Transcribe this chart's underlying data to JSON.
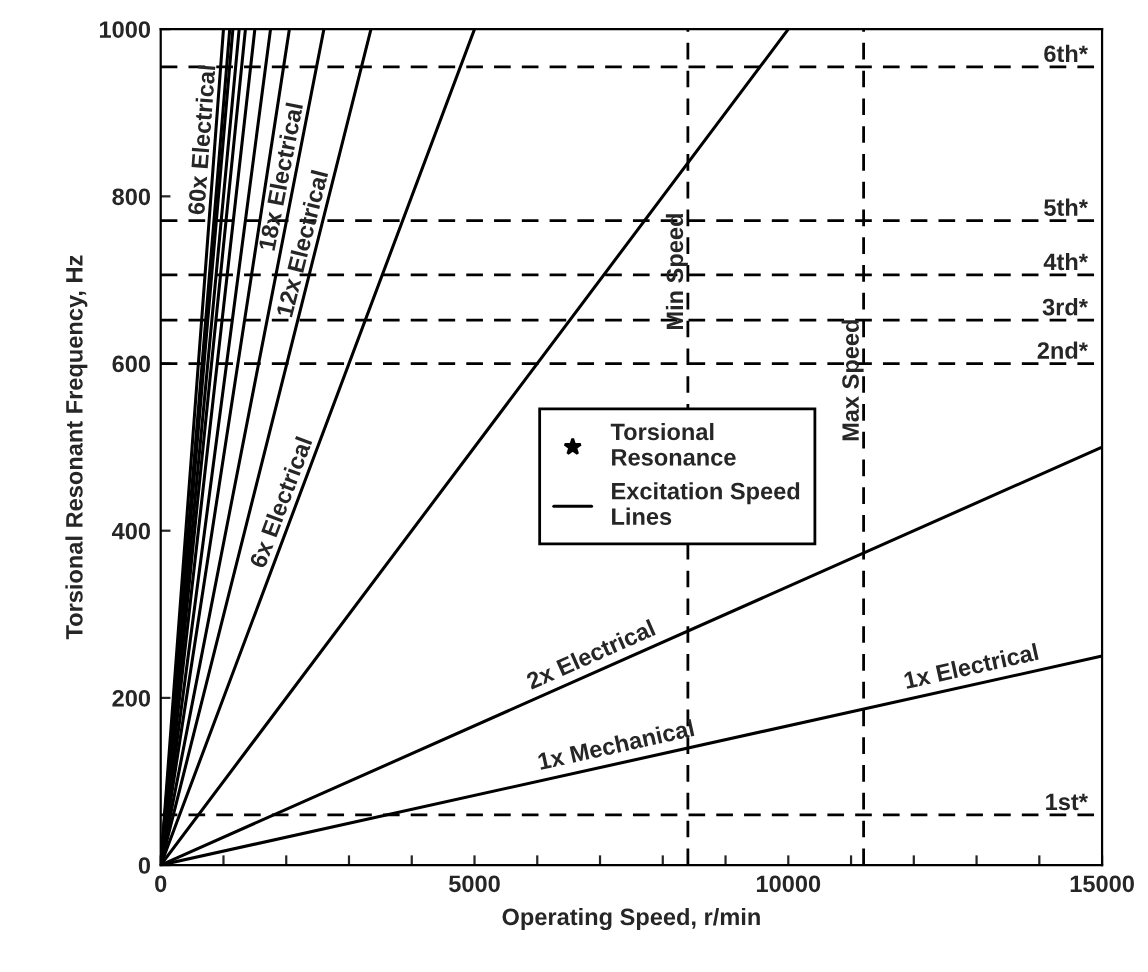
{
  "chart_data": {
    "type": "line",
    "xlabel": "Operating Speed, r/min",
    "ylabel": "Torsional Resonant Frequency, Hz",
    "xlim": [
      0,
      15000
    ],
    "ylim": [
      0,
      1000
    ],
    "xticks": [
      0,
      {
        "value": 1000,
        "label": null
      },
      {
        "value": 2000,
        "label": null
      },
      {
        "value": 3000,
        "label": null
      },
      {
        "value": 4000,
        "label": null
      },
      5000,
      {
        "value": 6000,
        "label": null
      },
      {
        "value": 7000,
        "label": null
      },
      {
        "value": 8000,
        "label": null
      },
      {
        "value": 9000,
        "label": null
      },
      10000,
      {
        "value": 11000,
        "label": null
      },
      {
        "value": 12000,
        "label": null
      },
      {
        "value": 13000,
        "label": null
      },
      {
        "value": 14000,
        "label": null
      },
      15000
    ],
    "yticks": [
      0,
      200,
      400,
      600,
      800,
      1000
    ],
    "grid": false,
    "legend": "right",
    "marker": "none",
    "line_style": "solid",
    "series": [
      {
        "name": "Excitation Speed Lines",
        "color": "#000000",
        "x": [
          0,
          15000
        ],
        "values": [
          0,
          250
        ]
      },
      {
        "color": "#000000",
        "x": [
          0,
          15000
        ],
        "values": [
          0,
          500
        ]
      },
      {
        "color": "#000000",
        "x": [
          0,
          10000
        ],
        "values": [
          0,
          1000
        ]
      },
      {
        "color": "#000000",
        "x": [
          0,
          5000
        ],
        "values": [
          0,
          1000
        ]
      },
      {
        "color": "#000000",
        "x": [
          0,
          3350
        ],
        "values": [
          0,
          1000
        ]
      },
      {
        "color": "#000000",
        "x": [
          0,
          2600
        ],
        "values": [
          0,
          1000
        ]
      },
      {
        "color": "#000000",
        "x": [
          0,
          2050
        ],
        "values": [
          0,
          1000
        ]
      },
      {
        "color": "#000000",
        "x": [
          0,
          1750
        ],
        "values": [
          0,
          1000
        ]
      },
      {
        "color": "#000000",
        "x": [
          0,
          1500
        ],
        "values": [
          0,
          1000
        ]
      },
      {
        "color": "#000000",
        "x": [
          0,
          1350
        ],
        "values": [
          0,
          1000
        ]
      },
      {
        "color": "#000000",
        "x": [
          0,
          1250
        ],
        "values": [
          0,
          1000
        ]
      },
      {
        "color": "#000000",
        "x": [
          0,
          1150
        ],
        "values": [
          0,
          1000
        ]
      },
      {
        "color": "#000000",
        "x": [
          0,
          1100
        ],
        "values": [
          0,
          1000
        ]
      },
      {
        "color": "#000000",
        "x": [
          0,
          1000
        ],
        "values": [
          0,
          1000
        ]
      }
    ],
    "ref_lines": [
      {
        "axis": "y",
        "value": 60,
        "label": "1st*",
        "color": "#000000",
        "line_style": "dashed"
      },
      {
        "axis": "y",
        "value": 600,
        "label": "2nd*",
        "color": "#000000",
        "line_style": "dashed"
      },
      {
        "axis": "y",
        "value": 652,
        "label": "3rd*",
        "color": "#000000",
        "line_style": "dashed"
      },
      {
        "axis": "y",
        "value": 706,
        "label": "4th*",
        "color": "#000000",
        "line_style": "dashed"
      },
      {
        "axis": "y",
        "value": 771,
        "label": "5th*",
        "color": "#000000",
        "line_style": "dashed"
      },
      {
        "axis": "y",
        "value": 955,
        "label": "6th*",
        "color": "#000000",
        "line_style": "dashed"
      },
      {
        "axis": "x",
        "value": 8400,
        "label": "Min Speed",
        "color": "#000000",
        "line_style": "dashed"
      },
      {
        "axis": "x",
        "value": 11200,
        "label": "Max Speed",
        "color": "#000000",
        "line_style": "dashed"
      }
    ],
    "annotations": [
      "Torsional Resonance",
      {
        "text": "60x Electrical",
        "x": 860,
        "y": 860
      },
      {
        "text": "18x Electrical",
        "x": 2116,
        "y": 814
      },
      {
        "text": "12x Electrical",
        "x": 2455,
        "y": 733
      },
      {
        "text": "6x Electrical",
        "x": 2110,
        "y": 422
      },
      {
        "text": "2x Electrical",
        "x": 6940,
        "y": 231
      },
      {
        "text": "1x Mechanical",
        "x": 7300,
        "y": 122
      },
      {
        "text": "1x Electrical",
        "x": 12960,
        "y": 216
      }
    ]
  }
}
